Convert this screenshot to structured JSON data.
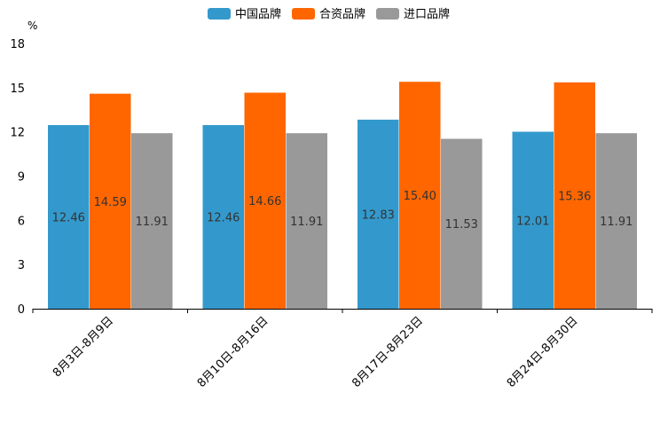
{
  "chart_data": {
    "type": "bar",
    "title": "",
    "unit": "%",
    "xlabel": "",
    "ylabel": "%",
    "ylim": [
      0,
      18
    ],
    "yticks": [
      0,
      3,
      6,
      9,
      12,
      15,
      18
    ],
    "grid": false,
    "legend_position": "top-center",
    "categories": [
      "8月3日-8月9日",
      "8月10日-8月16日",
      "8月17日-8月23日",
      "8月24日-8月30日"
    ],
    "series": [
      {
        "name": "中国品牌",
        "color": "#3399cc",
        "values": [
          12.46,
          12.46,
          12.83,
          12.01
        ],
        "labels": [
          "12.46",
          "12.46",
          "12.83",
          "12.01"
        ]
      },
      {
        "name": "合资品牌",
        "color": "#ff6600",
        "values": [
          14.59,
          14.66,
          15.4,
          15.36
        ],
        "labels": [
          "14.59",
          "14.66",
          "15.40",
          "15.36"
        ]
      },
      {
        "name": "进口品牌",
        "color": "#999999",
        "values": [
          11.91,
          11.91,
          11.53,
          11.91
        ],
        "labels": [
          "11.91",
          "11.91",
          "11.53",
          "11.91"
        ]
      }
    ]
  }
}
